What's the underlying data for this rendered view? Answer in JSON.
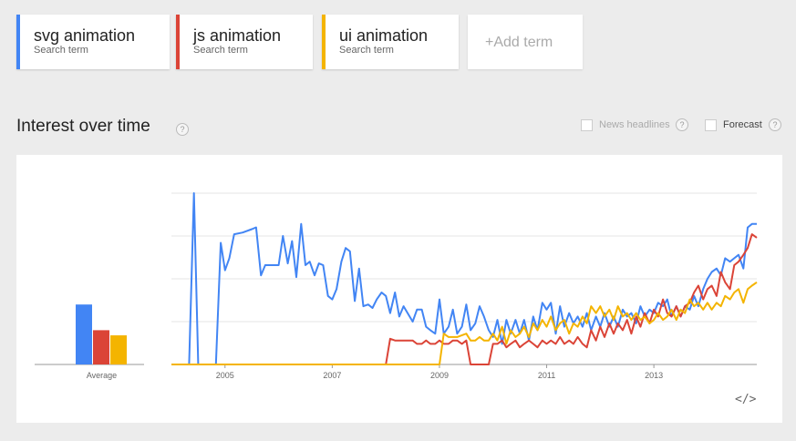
{
  "terms": [
    {
      "name": "svg animation",
      "sub": "Search term",
      "color": "#4285f4"
    },
    {
      "name": "js animation",
      "sub": "Search term",
      "color": "#db4437"
    },
    {
      "name": "ui animation",
      "sub": "Search term",
      "color": "#f4b400"
    }
  ],
  "add_term_label": "+Add term",
  "section_title": "Interest over time",
  "help_glyph": "?",
  "options": {
    "news_headlines": "News headlines",
    "forecast": "Forecast"
  },
  "embed_label": "</>",
  "chart_data": {
    "type": "line",
    "x_ticks": [
      "2005",
      "2007",
      "2009",
      "2011",
      "2013"
    ],
    "ylim": [
      0,
      100
    ],
    "grid": true,
    "average": {
      "label": "Average",
      "type": "bar",
      "values": [
        35,
        20,
        17
      ],
      "colors": [
        "#4285f4",
        "#db4437",
        "#f4b400"
      ]
    },
    "series": [
      {
        "color": "#4285f4",
        "points": [
          [
            2004.0,
            0
          ],
          [
            2004.33,
            0
          ],
          [
            2004.42,
            100
          ],
          [
            2004.5,
            0
          ],
          [
            2004.75,
            0
          ],
          [
            2004.83,
            0
          ],
          [
            2004.92,
            71
          ],
          [
            2005.0,
            55
          ],
          [
            2005.08,
            62
          ],
          [
            2005.17,
            76
          ],
          [
            2005.33,
            77
          ],
          [
            2005.5,
            79
          ],
          [
            2005.58,
            80
          ],
          [
            2005.67,
            52
          ],
          [
            2005.75,
            58
          ],
          [
            2005.83,
            58
          ],
          [
            2005.92,
            58
          ],
          [
            2006.0,
            58
          ],
          [
            2006.08,
            75
          ],
          [
            2006.17,
            59
          ],
          [
            2006.25,
            72
          ],
          [
            2006.33,
            51
          ],
          [
            2006.42,
            82
          ],
          [
            2006.5,
            58
          ],
          [
            2006.58,
            60
          ],
          [
            2006.67,
            52
          ],
          [
            2006.75,
            59
          ],
          [
            2006.83,
            58
          ],
          [
            2006.92,
            40
          ],
          [
            2007.0,
            38
          ],
          [
            2007.08,
            44
          ],
          [
            2007.17,
            60
          ],
          [
            2007.25,
            68
          ],
          [
            2007.33,
            66
          ],
          [
            2007.42,
            37
          ],
          [
            2007.5,
            56
          ],
          [
            2007.58,
            34
          ],
          [
            2007.67,
            35
          ],
          [
            2007.75,
            33
          ],
          [
            2007.83,
            38
          ],
          [
            2007.92,
            42
          ],
          [
            2008.0,
            40
          ],
          [
            2008.08,
            30
          ],
          [
            2008.17,
            42
          ],
          [
            2008.25,
            28
          ],
          [
            2008.33,
            34
          ],
          [
            2008.5,
            25
          ],
          [
            2008.58,
            32
          ],
          [
            2008.67,
            32
          ],
          [
            2008.75,
            22
          ],
          [
            2008.83,
            20
          ],
          [
            2008.92,
            18
          ],
          [
            2009.0,
            38
          ],
          [
            2009.08,
            18
          ],
          [
            2009.17,
            22
          ],
          [
            2009.25,
            32
          ],
          [
            2009.33,
            18
          ],
          [
            2009.42,
            22
          ],
          [
            2009.5,
            35
          ],
          [
            2009.58,
            20
          ],
          [
            2009.67,
            24
          ],
          [
            2009.75,
            34
          ],
          [
            2009.83,
            28
          ],
          [
            2009.92,
            20
          ],
          [
            2010.0,
            16
          ],
          [
            2010.08,
            26
          ],
          [
            2010.17,
            12
          ],
          [
            2010.25,
            26
          ],
          [
            2010.33,
            18
          ],
          [
            2010.42,
            26
          ],
          [
            2010.5,
            18
          ],
          [
            2010.58,
            26
          ],
          [
            2010.67,
            14
          ],
          [
            2010.75,
            28
          ],
          [
            2010.83,
            20
          ],
          [
            2010.92,
            36
          ],
          [
            2011.0,
            32
          ],
          [
            2011.08,
            36
          ],
          [
            2011.17,
            18
          ],
          [
            2011.25,
            34
          ],
          [
            2011.33,
            22
          ],
          [
            2011.42,
            30
          ],
          [
            2011.5,
            24
          ],
          [
            2011.58,
            28
          ],
          [
            2011.67,
            22
          ],
          [
            2011.75,
            30
          ],
          [
            2011.83,
            20
          ],
          [
            2011.92,
            28
          ],
          [
            2012.0,
            22
          ],
          [
            2012.08,
            30
          ],
          [
            2012.17,
            22
          ],
          [
            2012.25,
            28
          ],
          [
            2012.33,
            22
          ],
          [
            2012.42,
            32
          ],
          [
            2012.5,
            28
          ],
          [
            2012.58,
            30
          ],
          [
            2012.67,
            24
          ],
          [
            2012.75,
            34
          ],
          [
            2012.83,
            28
          ],
          [
            2012.92,
            32
          ],
          [
            2013.0,
            30
          ],
          [
            2013.08,
            36
          ],
          [
            2013.17,
            34
          ],
          [
            2013.25,
            38
          ],
          [
            2013.33,
            28
          ],
          [
            2013.42,
            34
          ],
          [
            2013.5,
            28
          ],
          [
            2013.58,
            34
          ],
          [
            2013.67,
            32
          ],
          [
            2013.75,
            40
          ],
          [
            2013.83,
            34
          ],
          [
            2013.92,
            44
          ],
          [
            2014.0,
            50
          ],
          [
            2014.08,
            54
          ],
          [
            2014.17,
            56
          ],
          [
            2014.25,
            52
          ],
          [
            2014.33,
            62
          ],
          [
            2014.42,
            60
          ],
          [
            2014.5,
            62
          ],
          [
            2014.58,
            64
          ],
          [
            2014.67,
            56
          ],
          [
            2014.75,
            80
          ],
          [
            2014.83,
            82
          ],
          [
            2014.92,
            82
          ]
        ]
      },
      {
        "color": "#db4437",
        "points": [
          [
            2004.0,
            0
          ],
          [
            2008.0,
            0
          ],
          [
            2008.08,
            15
          ],
          [
            2008.17,
            14
          ],
          [
            2008.33,
            14
          ],
          [
            2008.5,
            14
          ],
          [
            2008.58,
            12
          ],
          [
            2008.67,
            12
          ],
          [
            2008.75,
            14
          ],
          [
            2008.83,
            12
          ],
          [
            2008.92,
            12
          ],
          [
            2009.0,
            14
          ],
          [
            2009.08,
            12
          ],
          [
            2009.17,
            12
          ],
          [
            2009.25,
            14
          ],
          [
            2009.33,
            14
          ],
          [
            2009.42,
            12
          ],
          [
            2009.5,
            14
          ],
          [
            2009.58,
            0
          ],
          [
            2009.67,
            0
          ],
          [
            2009.75,
            0
          ],
          [
            2009.83,
            0
          ],
          [
            2009.92,
            0
          ],
          [
            2010.0,
            12
          ],
          [
            2010.08,
            12
          ],
          [
            2010.17,
            14
          ],
          [
            2010.25,
            10
          ],
          [
            2010.33,
            12
          ],
          [
            2010.42,
            14
          ],
          [
            2010.5,
            10
          ],
          [
            2010.58,
            12
          ],
          [
            2010.67,
            14
          ],
          [
            2010.75,
            12
          ],
          [
            2010.83,
            10
          ],
          [
            2010.92,
            14
          ],
          [
            2011.0,
            12
          ],
          [
            2011.08,
            14
          ],
          [
            2011.17,
            12
          ],
          [
            2011.25,
            16
          ],
          [
            2011.33,
            12
          ],
          [
            2011.42,
            14
          ],
          [
            2011.5,
            12
          ],
          [
            2011.58,
            16
          ],
          [
            2011.67,
            12
          ],
          [
            2011.75,
            10
          ],
          [
            2011.83,
            20
          ],
          [
            2011.92,
            14
          ],
          [
            2012.0,
            22
          ],
          [
            2012.08,
            16
          ],
          [
            2012.17,
            24
          ],
          [
            2012.25,
            18
          ],
          [
            2012.33,
            24
          ],
          [
            2012.42,
            20
          ],
          [
            2012.5,
            26
          ],
          [
            2012.58,
            18
          ],
          [
            2012.67,
            28
          ],
          [
            2012.75,
            22
          ],
          [
            2012.83,
            30
          ],
          [
            2012.92,
            24
          ],
          [
            2013.0,
            32
          ],
          [
            2013.08,
            28
          ],
          [
            2013.17,
            38
          ],
          [
            2013.25,
            30
          ],
          [
            2013.33,
            28
          ],
          [
            2013.42,
            34
          ],
          [
            2013.5,
            28
          ],
          [
            2013.58,
            34
          ],
          [
            2013.67,
            36
          ],
          [
            2013.75,
            42
          ],
          [
            2013.83,
            46
          ],
          [
            2013.92,
            38
          ],
          [
            2014.0,
            44
          ],
          [
            2014.08,
            46
          ],
          [
            2014.17,
            40
          ],
          [
            2014.25,
            54
          ],
          [
            2014.33,
            48
          ],
          [
            2014.42,
            44
          ],
          [
            2014.5,
            58
          ],
          [
            2014.58,
            60
          ],
          [
            2014.67,
            64
          ],
          [
            2014.75,
            68
          ],
          [
            2014.83,
            76
          ],
          [
            2014.92,
            74
          ]
        ]
      },
      {
        "color": "#f4b400",
        "points": [
          [
            2004.0,
            0
          ],
          [
            2009.0,
            0
          ],
          [
            2009.08,
            18
          ],
          [
            2009.17,
            16
          ],
          [
            2009.33,
            16
          ],
          [
            2009.5,
            18
          ],
          [
            2009.58,
            14
          ],
          [
            2009.67,
            14
          ],
          [
            2009.75,
            16
          ],
          [
            2009.83,
            14
          ],
          [
            2009.92,
            14
          ],
          [
            2010.0,
            18
          ],
          [
            2010.08,
            14
          ],
          [
            2010.17,
            22
          ],
          [
            2010.25,
            12
          ],
          [
            2010.33,
            20
          ],
          [
            2010.42,
            16
          ],
          [
            2010.5,
            18
          ],
          [
            2010.58,
            22
          ],
          [
            2010.67,
            16
          ],
          [
            2010.75,
            24
          ],
          [
            2010.83,
            20
          ],
          [
            2010.92,
            26
          ],
          [
            2011.0,
            22
          ],
          [
            2011.08,
            28
          ],
          [
            2011.17,
            20
          ],
          [
            2011.25,
            24
          ],
          [
            2011.33,
            26
          ],
          [
            2011.42,
            18
          ],
          [
            2011.5,
            24
          ],
          [
            2011.58,
            22
          ],
          [
            2011.67,
            28
          ],
          [
            2011.75,
            24
          ],
          [
            2011.83,
            34
          ],
          [
            2011.92,
            30
          ],
          [
            2012.0,
            34
          ],
          [
            2012.08,
            28
          ],
          [
            2012.17,
            32
          ],
          [
            2012.25,
            26
          ],
          [
            2012.33,
            34
          ],
          [
            2012.42,
            28
          ],
          [
            2012.5,
            30
          ],
          [
            2012.58,
            26
          ],
          [
            2012.67,
            30
          ],
          [
            2012.75,
            26
          ],
          [
            2012.83,
            28
          ],
          [
            2012.92,
            24
          ],
          [
            2013.0,
            26
          ],
          [
            2013.08,
            30
          ],
          [
            2013.17,
            26
          ],
          [
            2013.25,
            28
          ],
          [
            2013.33,
            32
          ],
          [
            2013.42,
            26
          ],
          [
            2013.5,
            32
          ],
          [
            2013.58,
            30
          ],
          [
            2013.67,
            38
          ],
          [
            2013.75,
            34
          ],
          [
            2013.83,
            36
          ],
          [
            2013.92,
            32
          ],
          [
            2014.0,
            36
          ],
          [
            2014.08,
            32
          ],
          [
            2014.17,
            36
          ],
          [
            2014.25,
            34
          ],
          [
            2014.33,
            40
          ],
          [
            2014.42,
            38
          ],
          [
            2014.5,
            42
          ],
          [
            2014.58,
            44
          ],
          [
            2014.67,
            36
          ],
          [
            2014.75,
            44
          ],
          [
            2014.83,
            46
          ],
          [
            2014.92,
            48
          ]
        ]
      }
    ]
  }
}
